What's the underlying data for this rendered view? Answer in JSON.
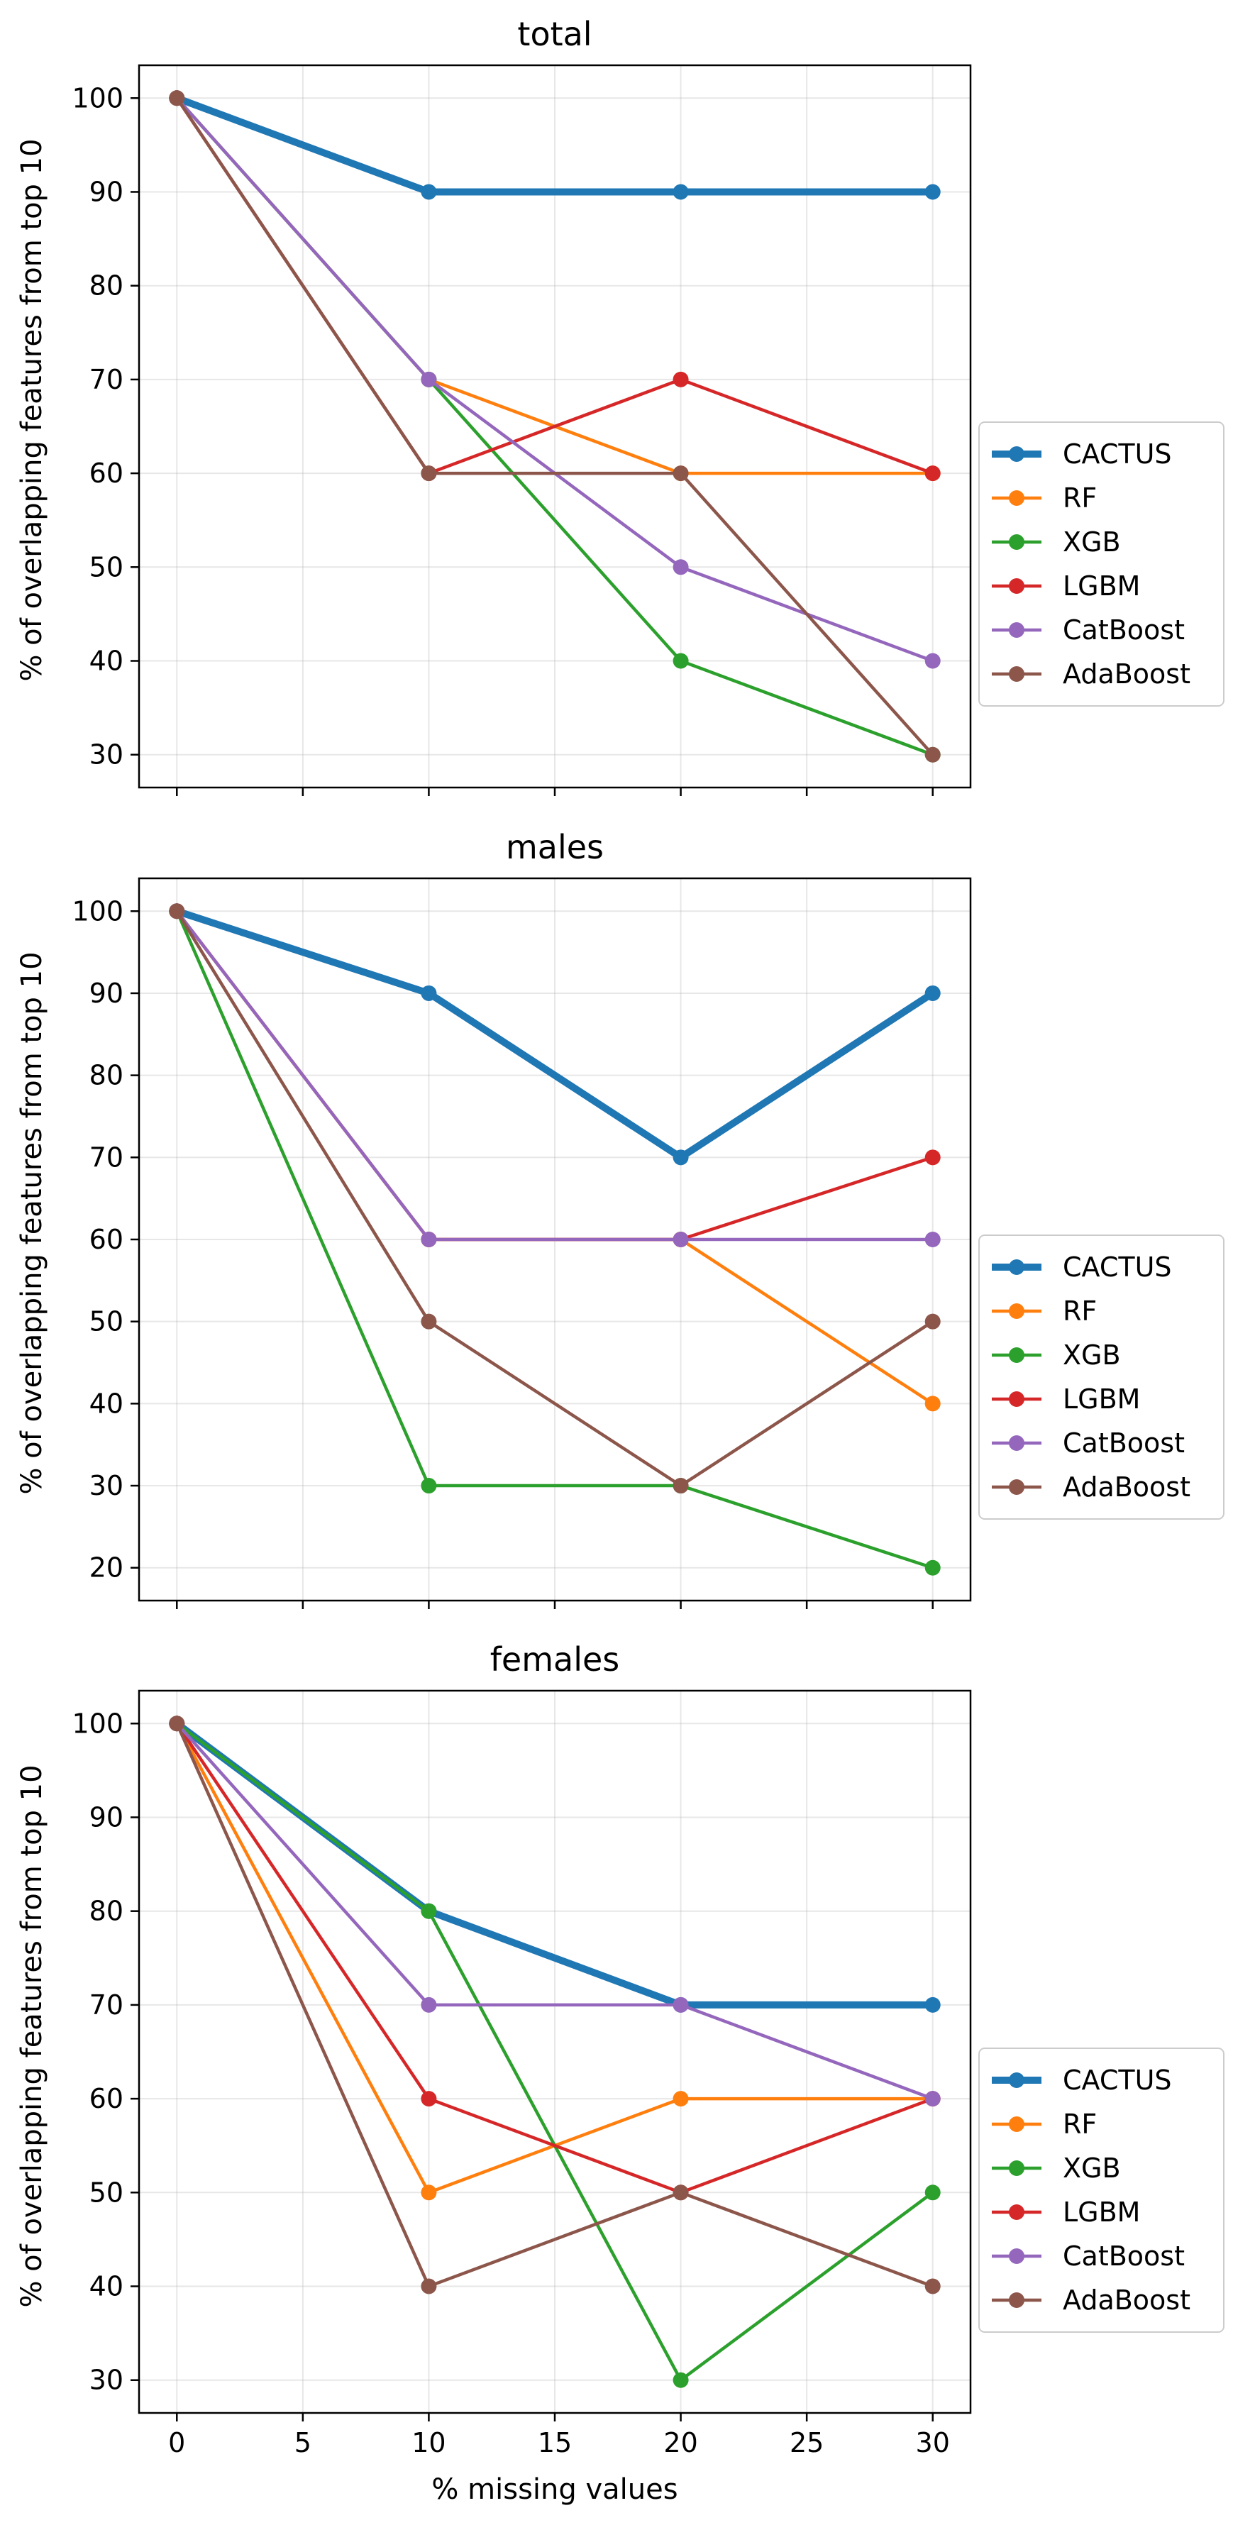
{
  "chart_data": [
    {
      "type": "line",
      "title": "total",
      "xlabel": "",
      "ylabel": "% of overlapping features from top 10",
      "x": [
        0,
        10,
        20,
        30
      ],
      "xlim": [
        -1.5,
        31.5
      ],
      "xticks": [
        0,
        5,
        10,
        15,
        20,
        25,
        30
      ],
      "ylim": [
        26.5,
        103.5
      ],
      "yticks": [
        30,
        40,
        50,
        60,
        70,
        80,
        90,
        100
      ],
      "grid": true,
      "legend": "right",
      "series": [
        {
          "name": "CACTUS",
          "color": "#1f77b4",
          "values": [
            100,
            90,
            90,
            90
          ],
          "thick": true
        },
        {
          "name": "RF",
          "color": "#ff7f0e",
          "values": [
            100,
            70,
            60,
            60
          ]
        },
        {
          "name": "XGB",
          "color": "#2ca02c",
          "values": [
            100,
            70,
            40,
            30
          ]
        },
        {
          "name": "LGBM",
          "color": "#d62728",
          "values": [
            100,
            60,
            70,
            60
          ]
        },
        {
          "name": "CatBoost",
          "color": "#9467bd",
          "values": [
            100,
            70,
            50,
            40
          ]
        },
        {
          "name": "AdaBoost",
          "color": "#8c564b",
          "values": [
            100,
            60,
            60,
            30
          ]
        }
      ]
    },
    {
      "type": "line",
      "title": "males",
      "xlabel": "",
      "ylabel": "% of overlapping features from top 10",
      "x": [
        0,
        10,
        20,
        30
      ],
      "xlim": [
        -1.5,
        31.5
      ],
      "xticks": [
        0,
        5,
        10,
        15,
        20,
        25,
        30
      ],
      "ylim": [
        16,
        104
      ],
      "yticks": [
        20,
        30,
        40,
        50,
        60,
        70,
        80,
        90,
        100
      ],
      "grid": true,
      "legend": "right",
      "series": [
        {
          "name": "CACTUS",
          "color": "#1f77b4",
          "values": [
            100,
            90,
            70,
            90
          ],
          "thick": true
        },
        {
          "name": "RF",
          "color": "#ff7f0e",
          "values": [
            100,
            60,
            60,
            40
          ]
        },
        {
          "name": "XGB",
          "color": "#2ca02c",
          "values": [
            100,
            30,
            30,
            20
          ]
        },
        {
          "name": "LGBM",
          "color": "#d62728",
          "values": [
            100,
            60,
            60,
            70
          ]
        },
        {
          "name": "CatBoost",
          "color": "#9467bd",
          "values": [
            100,
            60,
            60,
            60
          ]
        },
        {
          "name": "AdaBoost",
          "color": "#8c564b",
          "values": [
            100,
            50,
            30,
            50
          ]
        }
      ]
    },
    {
      "type": "line",
      "title": "females",
      "xlabel": "% missing values",
      "ylabel": "% of overlapping features from top 10",
      "x": [
        0,
        10,
        20,
        30
      ],
      "xlim": [
        -1.5,
        31.5
      ],
      "xticks": [
        0,
        5,
        10,
        15,
        20,
        25,
        30
      ],
      "ylim": [
        26.5,
        103.5
      ],
      "yticks": [
        30,
        40,
        50,
        60,
        70,
        80,
        90,
        100
      ],
      "grid": true,
      "legend": "right",
      "series": [
        {
          "name": "CACTUS",
          "color": "#1f77b4",
          "values": [
            100,
            80,
            70,
            70
          ],
          "thick": true
        },
        {
          "name": "RF",
          "color": "#ff7f0e",
          "values": [
            100,
            50,
            60,
            60
          ]
        },
        {
          "name": "XGB",
          "color": "#2ca02c",
          "values": [
            100,
            80,
            30,
            50
          ]
        },
        {
          "name": "LGBM",
          "color": "#d62728",
          "values": [
            100,
            60,
            50,
            60
          ]
        },
        {
          "name": "CatBoost",
          "color": "#9467bd",
          "values": [
            100,
            70,
            70,
            60
          ]
        },
        {
          "name": "AdaBoost",
          "color": "#8c564b",
          "values": [
            100,
            40,
            50,
            40
          ]
        }
      ]
    }
  ]
}
